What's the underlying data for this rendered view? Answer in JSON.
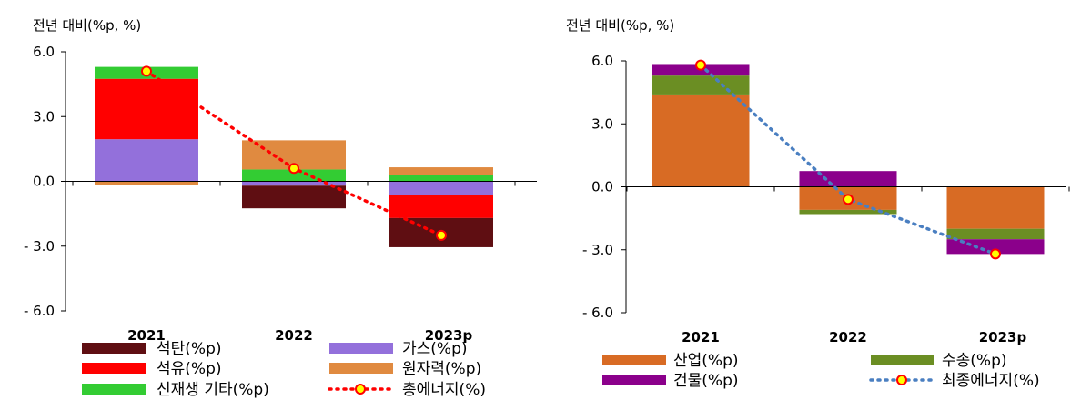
{
  "chart_data": [
    {
      "type": "bar",
      "stacked": true,
      "ylabel": "전년 대비(%p, %)",
      "categories": [
        "2021",
        "2022",
        "2023p"
      ],
      "ylim": [
        -6.0,
        6.0
      ],
      "yticks": [
        6.0,
        3.0,
        0.0,
        -3.0,
        -6.0
      ],
      "ytick_labels": [
        "6.0",
        "3.0",
        "0.0",
        "- 3.0",
        "- 6.0"
      ],
      "grid": false,
      "legend_position": "bottom",
      "series": [
        {
          "name": "석탄(%p)",
          "color": "#5f0e12",
          "values": [
            0.0,
            -1.05,
            -1.35
          ]
        },
        {
          "name": "석유(%p)",
          "color": "#ff0000",
          "values": [
            2.8,
            0.0,
            -1.05
          ]
        },
        {
          "name": "신재생 기타(%p)",
          "color": "#33cc33",
          "values": [
            0.55,
            0.55,
            0.3
          ]
        },
        {
          "name": "가스(%p)",
          "color": "#9370db",
          "values": [
            1.95,
            -0.2,
            -0.65
          ]
        },
        {
          "name": "원자력(%p)",
          "color": "#e08a40",
          "values": [
            -0.15,
            1.35,
            0.35
          ]
        }
      ],
      "line_series": {
        "name": "총에너지(%)",
        "color": "#ff0000",
        "values": [
          5.1,
          0.6,
          -2.5
        ]
      }
    },
    {
      "type": "bar",
      "stacked": true,
      "ylabel": "전년 대비(%p, %)",
      "categories": [
        "2021",
        "2022",
        "2023p"
      ],
      "ylim": [
        -6.0,
        6.0
      ],
      "yticks": [
        6.0,
        3.0,
        0.0,
        -3.0,
        -6.0
      ],
      "ytick_labels": [
        "6.0",
        "3.0",
        "0.0",
        "- 3.0",
        "- 6.0"
      ],
      "grid": false,
      "legend_position": "bottom",
      "series": [
        {
          "name": "산업(%p)",
          "color": "#d86b24",
          "values": [
            4.4,
            -1.1,
            -2.0
          ]
        },
        {
          "name": "수송(%p)",
          "color": "#6b8e23",
          "values": [
            0.9,
            -0.2,
            -0.5
          ]
        },
        {
          "name": "건물(%p)",
          "color": "#8b008b",
          "values": [
            0.55,
            0.75,
            -0.7
          ]
        }
      ],
      "line_series": {
        "name": "최종에너지(%)",
        "color": "#4a7fc1",
        "values": [
          5.8,
          -0.6,
          -3.2
        ]
      }
    }
  ]
}
